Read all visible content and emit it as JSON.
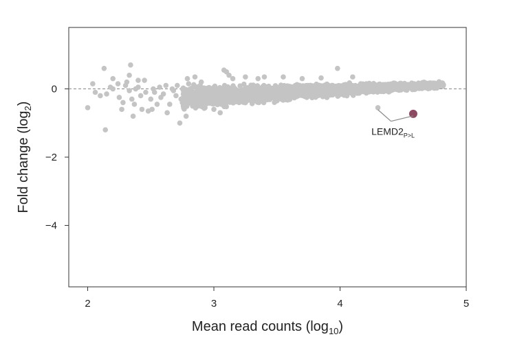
{
  "chart_data": {
    "type": "scatter",
    "title": "",
    "xlabel": "Mean read counts (log",
    "xlabel_sub": "10",
    "xlabel_close": ")",
    "ylabel": "Fold change (log",
    "ylabel_sub": "2",
    "ylabel_close": ")",
    "xlim": [
      1.85,
      5.0
    ],
    "ylim": [
      -5.8,
      1.8
    ],
    "xticks": [
      2,
      3,
      4,
      5
    ],
    "xtick_labels": [
      "2",
      "3",
      "4",
      "5"
    ],
    "yticks": [
      0,
      -2,
      -4
    ],
    "ytick_labels": [
      "0",
      "−2",
      "−4"
    ],
    "grid": false,
    "reference_line_y": 0,
    "colors": {
      "points": "#c4c4c4",
      "highlight": "#8e4a63",
      "axis": "#333333",
      "reference_line": "#888888"
    },
    "series": [
      {
        "points": [
          [
            2.0,
            -0.55
          ],
          [
            2.04,
            0.15
          ],
          [
            2.06,
            -0.1
          ],
          [
            2.1,
            -0.2
          ],
          [
            2.13,
            0.6
          ],
          [
            2.14,
            -1.2
          ],
          [
            2.15,
            -0.15
          ],
          [
            2.18,
            0.05
          ],
          [
            2.2,
            0.0
          ],
          [
            2.2,
            0.3
          ],
          [
            2.24,
            0.15
          ],
          [
            2.25,
            -0.25
          ],
          [
            2.27,
            -0.6
          ],
          [
            2.28,
            -0.4
          ],
          [
            2.3,
            0.1
          ],
          [
            2.31,
            0.2
          ],
          [
            2.33,
            -0.05
          ],
          [
            2.33,
            0.4
          ],
          [
            2.34,
            0.7
          ],
          [
            2.35,
            -0.3
          ],
          [
            2.36,
            -0.8
          ],
          [
            2.37,
            -0.45
          ],
          [
            2.38,
            0.0
          ],
          [
            2.4,
            0.05
          ],
          [
            2.4,
            0.25
          ],
          [
            2.42,
            -0.2
          ],
          [
            2.43,
            -0.6
          ],
          [
            2.45,
            0.25
          ],
          [
            2.46,
            -0.1
          ],
          [
            2.48,
            -0.65
          ],
          [
            2.5,
            -0.3
          ],
          [
            2.51,
            -0.6
          ],
          [
            2.52,
            0.0
          ],
          [
            2.53,
            -0.1
          ],
          [
            2.55,
            -0.45
          ],
          [
            2.57,
            0.05
          ],
          [
            2.58,
            -0.25
          ],
          [
            2.6,
            -0.15
          ],
          [
            2.62,
            0.1
          ],
          [
            2.63,
            -0.7
          ],
          [
            2.65,
            -0.45
          ],
          [
            2.67,
            0.0
          ],
          [
            2.68,
            -0.05
          ],
          [
            2.7,
            -0.2
          ],
          [
            2.71,
            0.1
          ],
          [
            2.73,
            -1.0
          ],
          [
            2.74,
            -0.3
          ],
          [
            2.76,
            -0.55
          ],
          [
            2.78,
            -0.8
          ],
          [
            2.79,
            0.3
          ],
          [
            2.8,
            0.15
          ],
          [
            2.82,
            -0.1
          ],
          [
            2.85,
            0.35
          ],
          [
            2.88,
            -0.5
          ],
          [
            2.9,
            0.2
          ],
          [
            2.93,
            -0.55
          ],
          [
            3.0,
            -0.6
          ],
          [
            3.05,
            -0.7
          ],
          [
            3.08,
            0.55
          ],
          [
            3.1,
            0.5
          ],
          [
            3.12,
            0.4
          ],
          [
            3.15,
            0.3
          ],
          [
            3.2,
            -0.4
          ],
          [
            3.25,
            0.35
          ],
          [
            3.3,
            -0.35
          ],
          [
            3.35,
            0.3
          ],
          [
            3.4,
            0.35
          ],
          [
            3.5,
            -0.35
          ],
          [
            3.55,
            0.35
          ],
          [
            3.6,
            -0.3
          ],
          [
            3.7,
            0.3
          ],
          [
            3.85,
            0.32
          ],
          [
            3.98,
            0.6
          ],
          [
            4.1,
            0.35
          ],
          [
            4.3,
            -0.55
          ]
        ]
      },
      {
        "name": "LEMD2",
        "name_sub": "P>L",
        "highlight": true,
        "points": [
          [
            4.58,
            -0.73
          ]
        ]
      }
    ],
    "dense_band": {
      "x_range": [
        2.75,
        4.82
      ],
      "y_center_start": -0.25,
      "y_center_end": 0.12,
      "y_spread_start": 0.42,
      "y_spread_end": 0.1
    },
    "annotation": {
      "text": "LEMD2",
      "sub": "P>L",
      "label_x": 4.42,
      "label_y": -1.35,
      "connects_points": [
        [
          4.3,
          -0.55
        ],
        [
          4.58,
          -0.73
        ]
      ]
    }
  }
}
